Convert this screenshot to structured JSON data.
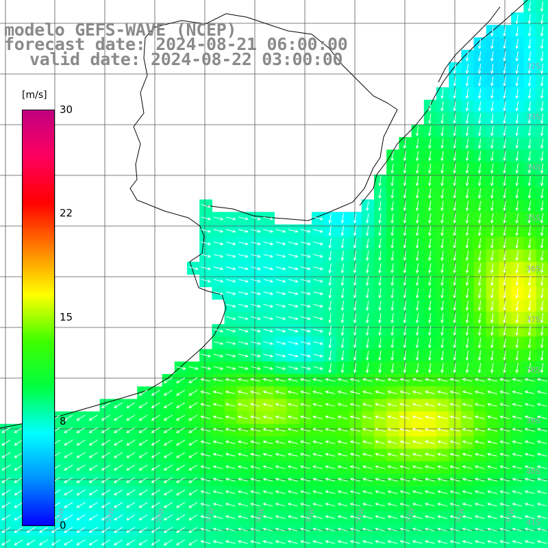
{
  "header": {
    "model_line": "modelo GEFS-WAVE (NCEP)",
    "forecast_line": "forecast date: 2024-08-21 06:00:00",
    "valid_line": "valid date: 2024-08-22 03:00:00"
  },
  "colorbar": {
    "unit": "[m/s]",
    "ticks": [
      "30",
      "22",
      "15",
      "8",
      "0"
    ],
    "tick_values": [
      30,
      22,
      15,
      8,
      0
    ],
    "range": [
      0,
      30
    ],
    "colors": [
      "#0000ff",
      "#0090ff",
      "#00ffff",
      "#00ff40",
      "#40ff00",
      "#ffff00",
      "#ff8000",
      "#ff0000",
      "#ff0060",
      "#c00080"
    ]
  },
  "axes": {
    "lat_labels": [
      "32S",
      "33S",
      "34S",
      "35S",
      "36S",
      "37S",
      "38S",
      "39S",
      "40S",
      "41S"
    ],
    "lon_labels": [
      "60W",
      "59W",
      "58W",
      "57W",
      "56W",
      "55W",
      "54W",
      "53W",
      "52W",
      "51W"
    ]
  },
  "map": {
    "variable": "wind speed",
    "land_color": "#ffffff",
    "grid_color": "#555555",
    "arrow_color": "#ffffff",
    "coast_color": "#000000"
  }
}
